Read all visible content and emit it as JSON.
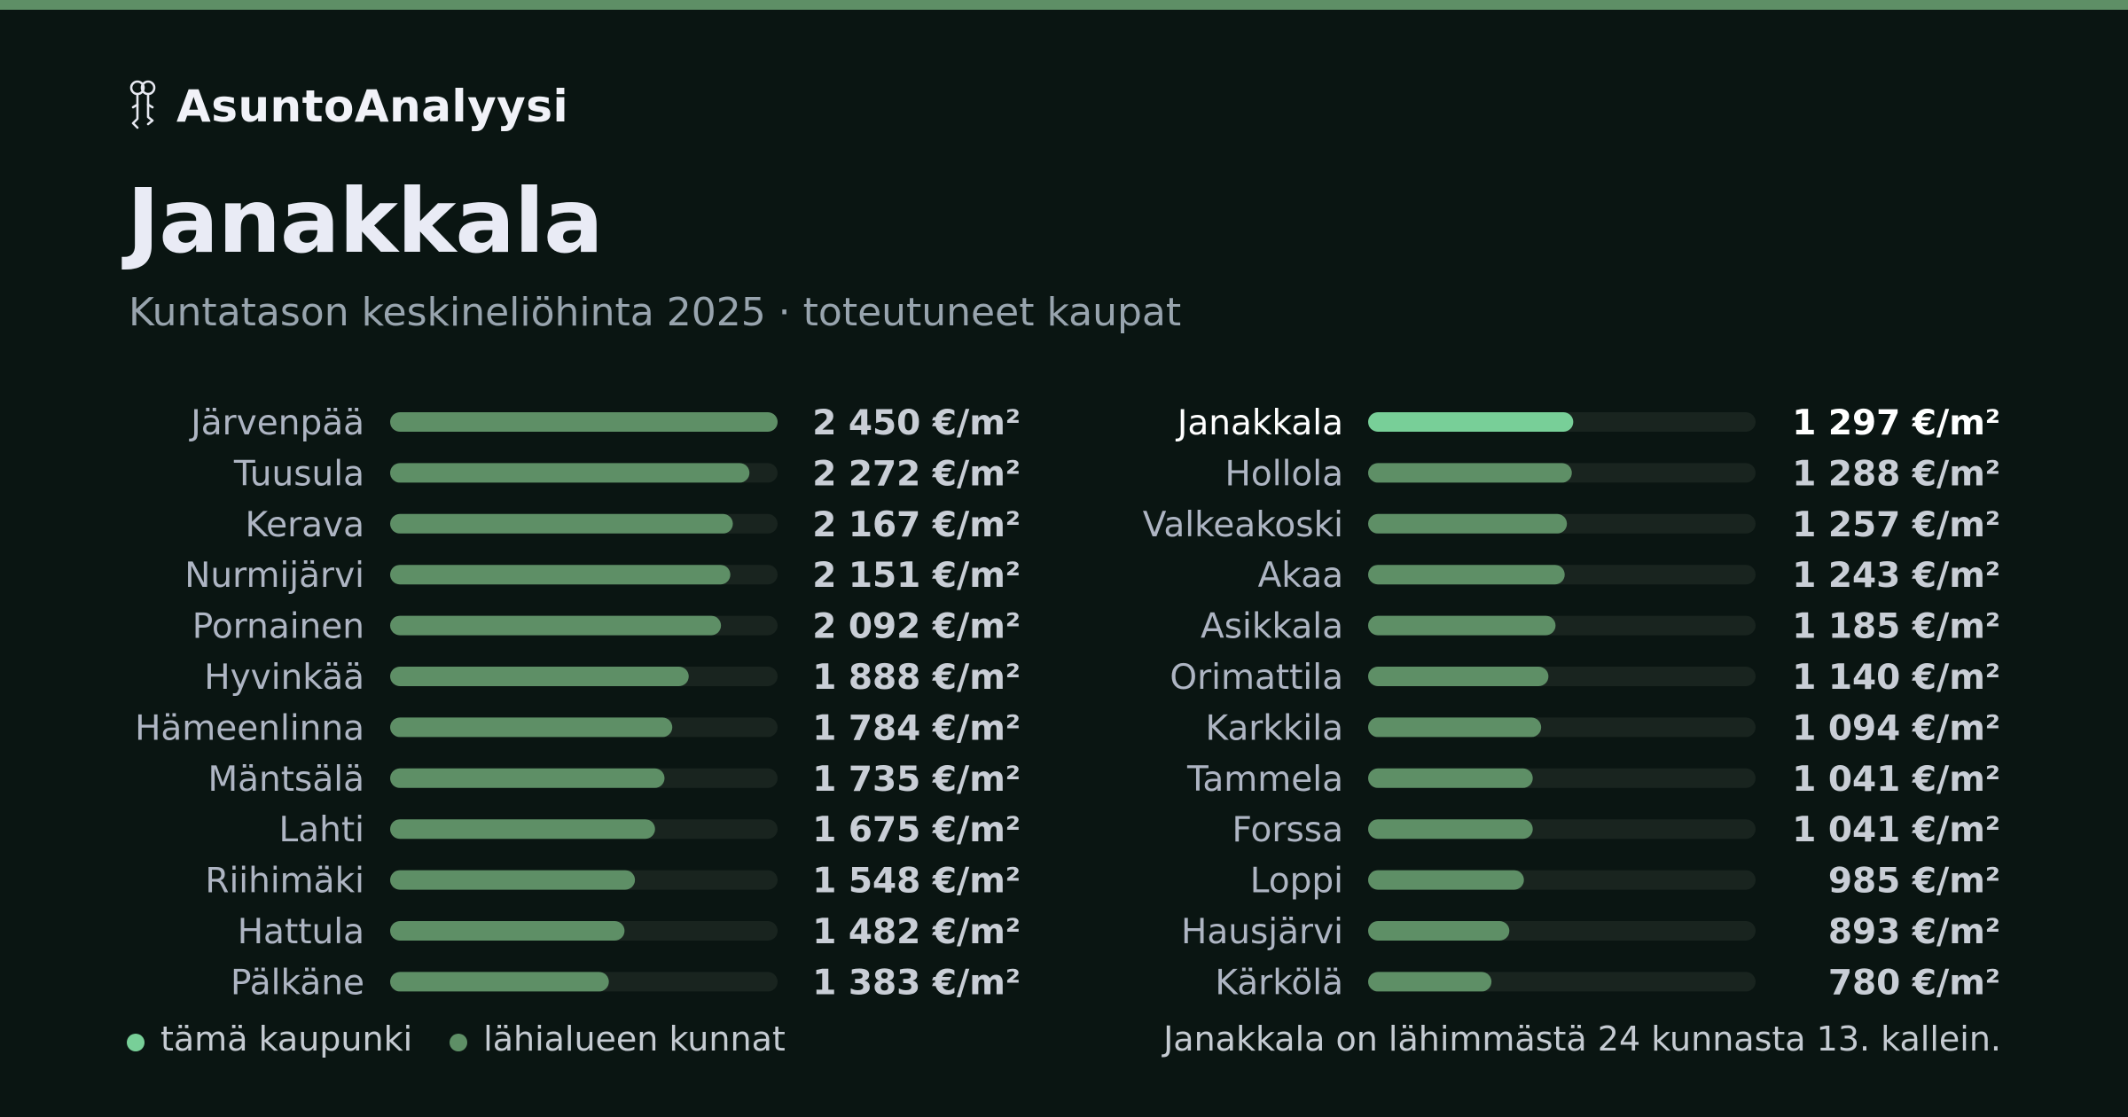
{
  "brand": {
    "icon": "keys-icon",
    "name": "AsuntoAnalyysi"
  },
  "header": {
    "title": "Janakkala",
    "subtitle": "Kuntatason keskineliöhinta 2025 · toteutuneet kaupat"
  },
  "colors": {
    "background": "#0a1512",
    "accent": "#78cf98",
    "neighbour_bar": "#5e8f66",
    "track": "#19241f",
    "stripe": "#5e8f66",
    "muted_text": "#98a4ae",
    "label_text": "#aeb5c3",
    "value_text": "#c9ced6",
    "highlight_text": "#ffffff"
  },
  "chart_data": {
    "type": "bar",
    "orientation": "horizontal",
    "unit": "€/m²",
    "xlim": [
      0,
      2450
    ],
    "highlight": "Janakkala",
    "columns": [
      {
        "categories": [
          "Järvenpää",
          "Tuusula",
          "Kerava",
          "Nurmijärvi",
          "Pornainen",
          "Hyvinkää",
          "Hämeenlinna",
          "Mäntsälä",
          "Lahti",
          "Riihimäki",
          "Hattula",
          "Pälkäne"
        ],
        "values": [
          2450,
          2272,
          2167,
          2151,
          2092,
          1888,
          1784,
          1735,
          1675,
          1548,
          1482,
          1383
        ],
        "labels": [
          "2 450 €/m²",
          "2 272 €/m²",
          "2 167 €/m²",
          "2 151 €/m²",
          "2 092 €/m²",
          "1 888 €/m²",
          "1 784 €/m²",
          "1 735 €/m²",
          "1 675 €/m²",
          "1 548 €/m²",
          "1 482 €/m²",
          "1 383 €/m²"
        ]
      },
      {
        "categories": [
          "Janakkala",
          "Hollola",
          "Valkeakoski",
          "Akaa",
          "Asikkala",
          "Orimattila",
          "Karkkila",
          "Tammela",
          "Forssa",
          "Loppi",
          "Hausjärvi",
          "Kärkölä"
        ],
        "values": [
          1297,
          1288,
          1257,
          1243,
          1185,
          1140,
          1094,
          1041,
          1041,
          985,
          893,
          780
        ],
        "labels": [
          "1 297 €/m²",
          "1 288 €/m²",
          "1 257 €/m²",
          "1 243 €/m²",
          "1 185 €/m²",
          "1 140 €/m²",
          "1 094 €/m²",
          "1 041 €/m²",
          "1 041 €/m²",
          "985 €/m²",
          "893 €/m²",
          "780 €/m²"
        ]
      }
    ],
    "legend": [
      {
        "label": "tämä kaupunki",
        "color": "#78cf98"
      },
      {
        "label": "lähialueen kunnat",
        "color": "#5e8f66"
      }
    ],
    "legend_position": "bottom-left"
  },
  "footnote": "Janakkala on lähimmästä 24 kunnasta 13. kallein."
}
